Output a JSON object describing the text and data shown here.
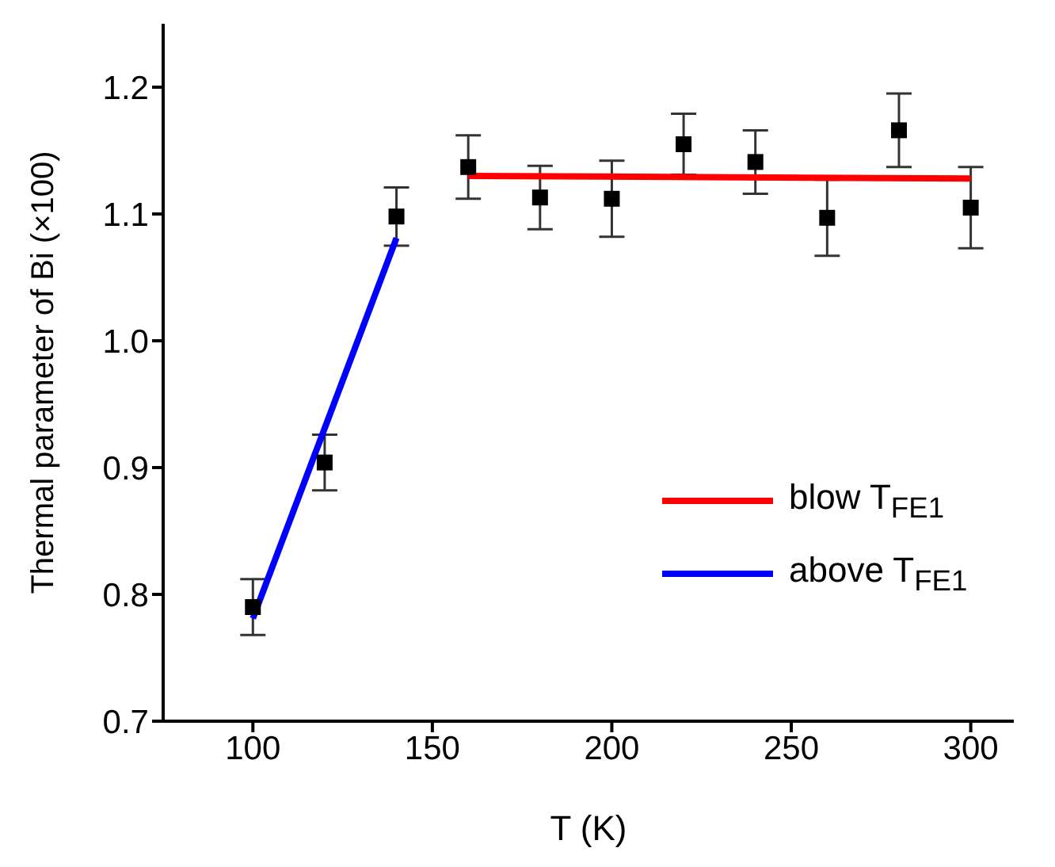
{
  "chart_data": {
    "type": "scatter",
    "xlabel": "T (K)",
    "ylabel": "Thermal parameter of Bi (×100)",
    "xlim": [
      75,
      312
    ],
    "xticks": [
      100,
      150,
      200,
      250,
      300
    ],
    "ylim": [
      0.7,
      1.25
    ],
    "yticks": [
      0.7,
      0.8,
      0.9,
      {
        "value": 1,
        "label": "1.0"
      },
      1.1,
      1.2
    ],
    "legend": "bottom right",
    "series": [
      {
        "color": "#000000",
        "marker": "square",
        "x": [
          100,
          120,
          140,
          160,
          180,
          200,
          220,
          240,
          260,
          280,
          300
        ],
        "values": [
          0.79,
          0.904,
          1.098,
          1.137,
          1.113,
          1.112,
          1.155,
          1.141,
          1.097,
          1.166,
          1.105
        ],
        "errors": [
          0.022,
          0.022,
          0.023,
          0.025,
          0.025,
          0.03,
          0.024,
          0.025,
          0.03,
          0.029,
          0.032
        ]
      },
      {
        "type": "line",
        "name": "blow T$_{FE1}$",
        "color": "#ff0000",
        "x": [
          160,
          300
        ],
        "values": [
          1.13,
          1.128
        ]
      },
      {
        "type": "line",
        "name": "above T$_{FE1}$",
        "color": "#0000ff",
        "x": [
          100,
          140
        ],
        "values": [
          0.781,
          1.081
        ]
      }
    ]
  }
}
